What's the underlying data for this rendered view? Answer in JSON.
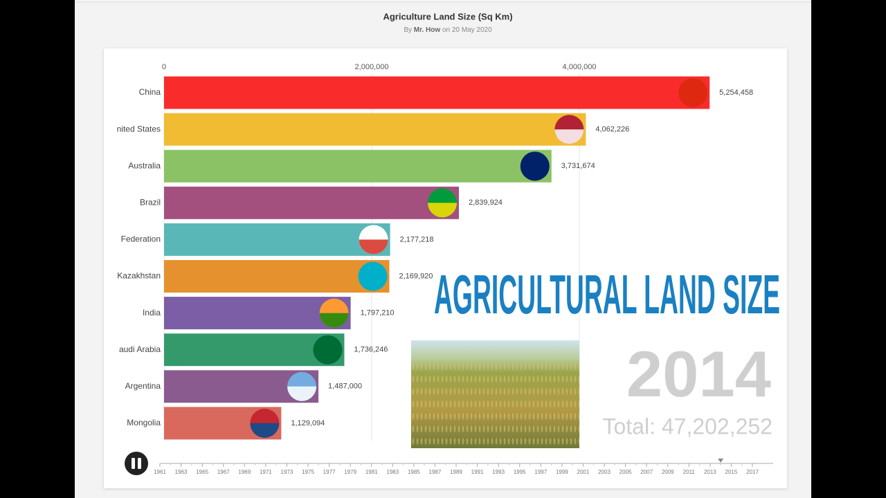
{
  "header": {
    "title": "Agriculture Land Size (Sq Km)",
    "byline_prefix": "By",
    "author": "Mr. How",
    "byline_suffix": "on 20 May 2020"
  },
  "chart_data": {
    "type": "bar",
    "orientation": "horizontal",
    "categories": [
      "China",
      "nited States",
      "Australia",
      "Brazil",
      "Federation",
      "Kazakhstan",
      "India",
      "audi Arabia",
      "Argentina",
      "Mongolia"
    ],
    "values": [
      5254458,
      4062226,
      3731674,
      2839924,
      2177218,
      2169920,
      1797210,
      1736246,
      1487000,
      1129094
    ],
    "value_labels": [
      "5,254,458",
      "4,062,226",
      "3,731,674",
      "2,839,924",
      "2,177,218",
      "2,169,920",
      "1,797,210",
      "1,736,246",
      "1,487,000",
      "1,129,094"
    ],
    "colors": [
      "#fa2b2b",
      "#f1bc32",
      "#8bc266",
      "#a4507f",
      "#5ab7b8",
      "#e5912e",
      "#7b5ea6",
      "#349a6b",
      "#8a5b8e",
      "#d9695d"
    ],
    "xlim": [
      0,
      5800000
    ],
    "xticks": [
      0,
      {
        "value": 2000000,
        "label": "2,000,000"
      },
      {
        "value": 4000000,
        "label": "4,000,000"
      }
    ],
    "grid": true,
    "overlay_title": "AGRICULTURAL LAND SIZE",
    "year": 2014,
    "total_label": "Total: 47,202,252"
  },
  "timeline": {
    "years": [
      1961,
      1963,
      1965,
      1967,
      1969,
      1971,
      1973,
      1975,
      1977,
      1979,
      1981,
      1983,
      1985,
      1987,
      1989,
      1991,
      1993,
      1995,
      1997,
      1999,
      2001,
      2003,
      2005,
      2007,
      2009,
      2011,
      2013,
      2015,
      2017
    ],
    "current": 2014
  }
}
